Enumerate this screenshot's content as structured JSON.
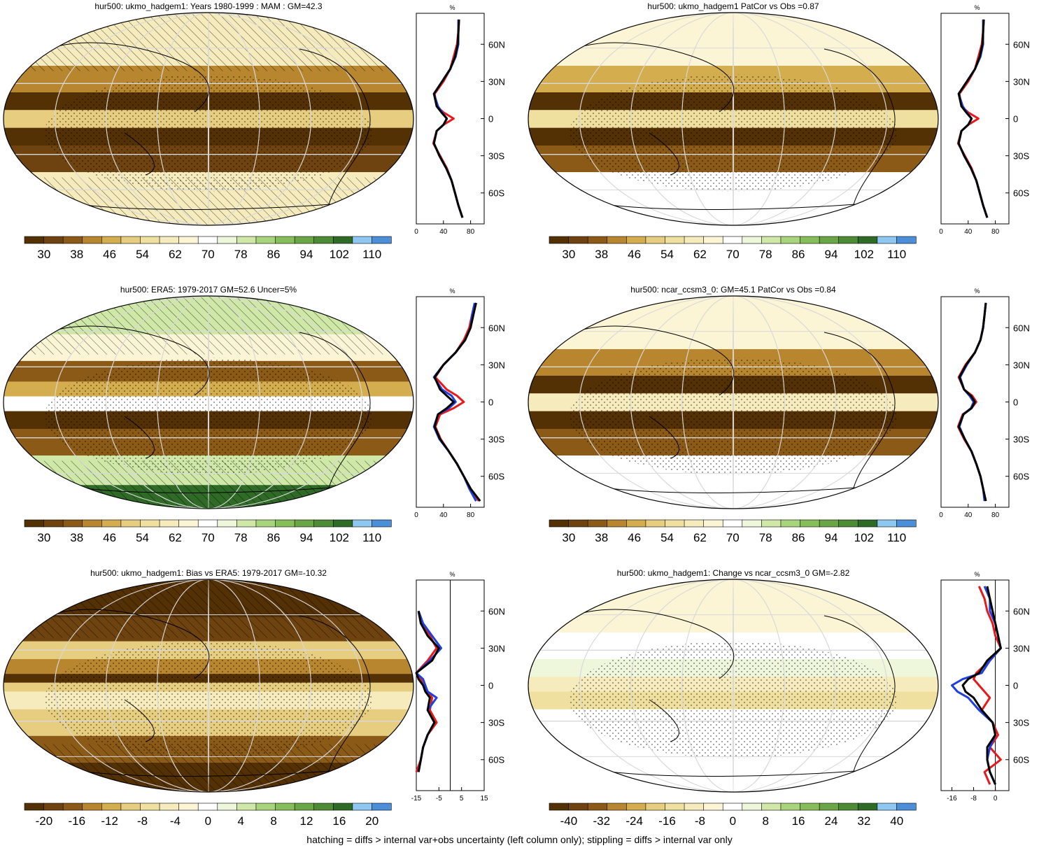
{
  "footnote": "hatching = diffs > internal var+obs uncertainty (left column only); stippling = diffs > internal var only",
  "colors": {
    "abs_palette": [
      "#543005",
      "#6e430f",
      "#8c5a17",
      "#b8862e",
      "#d4ad4e",
      "#e6cd7f",
      "#f0e0a0",
      "#f6ebbd",
      "#fbf5d6",
      "#ffffff",
      "#eef6dc",
      "#cfe8a8",
      "#a8d47c",
      "#86bf5a",
      "#6aa645",
      "#4d8b34",
      "#2f6b27",
      "#8ec7f0",
      "#4a8fd8"
    ],
    "diff_palette": [
      "#543005",
      "#6e430f",
      "#8c5a17",
      "#b8862e",
      "#d4ad4e",
      "#e6cd7f",
      "#f0e0a0",
      "#f6ebbd",
      "#fbf5d6",
      "#ffffff",
      "#eef6dc",
      "#cfe8a8",
      "#a8d47c",
      "#86bf5a",
      "#6aa645",
      "#4d8b34",
      "#2f6b27",
      "#8ec7f0",
      "#4a8fd8"
    ],
    "profile_model": "#e8191c",
    "profile_obs": "#1f3fe0",
    "profile_mmm": "#000000"
  },
  "chart_data": [
    {
      "type": "heatmap",
      "id": "p1",
      "title": "hur500: ukmo_hadgem1: Years 1980-1999 : MAM : GM=42.3",
      "colorbar_ticks": [
        "30",
        "38",
        "46",
        "54",
        "62",
        "70",
        "78",
        "86",
        "94",
        "102",
        "110"
      ],
      "map_bands": [
        {
          "lat": 60,
          "v": 62
        },
        {
          "lat": 30,
          "v": 46
        },
        {
          "lat": 15,
          "v": 30
        },
        {
          "lat": 0,
          "v": 54
        },
        {
          "lat": -15,
          "v": 30
        },
        {
          "lat": -30,
          "v": 38
        },
        {
          "lat": -60,
          "v": 62
        }
      ],
      "hatched": true,
      "stippled": true,
      "profile": {
        "unit": "%",
        "lat_ticks": [
          "60N",
          "30N",
          "0",
          "30S",
          "60S"
        ],
        "x_ticks": [
          "0",
          "40",
          "80"
        ],
        "xlim": [
          0,
          100
        ],
        "show_zero_line": false,
        "lat": [
          80,
          70,
          60,
          50,
          40,
          30,
          20,
          10,
          5,
          0,
          -5,
          -10,
          -20,
          -30,
          -40,
          -50,
          -60,
          -70,
          -80
        ],
        "model": [
          63,
          62,
          60,
          55,
          50,
          40,
          27,
          30,
          40,
          55,
          40,
          30,
          25,
          35,
          45,
          52,
          57,
          62,
          68
        ],
        "obs": [
          62,
          62,
          62,
          58,
          50,
          38,
          26,
          32,
          38,
          45,
          40,
          30,
          26,
          34,
          44,
          52,
          57,
          62,
          68
        ],
        "mmm": [
          63,
          62,
          61,
          57,
          50,
          38,
          26,
          30,
          37,
          45,
          40,
          30,
          26,
          34,
          44,
          52,
          57,
          62,
          68
        ]
      }
    },
    {
      "type": "heatmap",
      "id": "p2",
      "title": "hur500: ukmo_hadgem1 PatCor vs Obs =0.87",
      "colorbar_ticks": [
        "30",
        "38",
        "46",
        "54",
        "62",
        "70",
        "78",
        "86",
        "94",
        "102",
        "110"
      ],
      "map_bands": [
        {
          "lat": 60,
          "v": 66
        },
        {
          "lat": 30,
          "v": 50
        },
        {
          "lat": 15,
          "v": 34
        },
        {
          "lat": 0,
          "v": 58
        },
        {
          "lat": -15,
          "v": 32
        },
        {
          "lat": -30,
          "v": 42
        },
        {
          "lat": -60,
          "v": 70
        }
      ],
      "hatched": false,
      "stippled": true,
      "profile": {
        "unit": "%",
        "lat_ticks": [
          "60N",
          "30N",
          "0",
          "30S",
          "60S"
        ],
        "x_ticks": [
          "0",
          "40",
          "80"
        ],
        "xlim": [
          0,
          100
        ],
        "show_zero_line": false,
        "lat": [
          80,
          70,
          60,
          50,
          40,
          30,
          20,
          10,
          5,
          0,
          -5,
          -10,
          -20,
          -30,
          -40,
          -50,
          -60,
          -70,
          -80
        ],
        "model": [
          63,
          62,
          60,
          55,
          50,
          40,
          27,
          30,
          40,
          55,
          40,
          30,
          25,
          35,
          45,
          52,
          57,
          62,
          68
        ],
        "obs": [
          62,
          62,
          62,
          58,
          50,
          38,
          26,
          32,
          38,
          45,
          40,
          30,
          26,
          34,
          44,
          52,
          57,
          62,
          68
        ],
        "mmm": [
          63,
          62,
          61,
          57,
          50,
          38,
          26,
          30,
          37,
          45,
          40,
          30,
          26,
          34,
          44,
          52,
          57,
          62,
          68
        ]
      }
    },
    {
      "type": "heatmap",
      "id": "p3",
      "title": "hur500: ERA5: 1979-2017 GM=52.6 Uncer=5%",
      "colorbar_ticks": [
        "30",
        "38",
        "46",
        "54",
        "62",
        "70",
        "78",
        "86",
        "94",
        "102",
        "110"
      ],
      "map_bands": [
        {
          "lat": 70,
          "v": 80
        },
        {
          "lat": 45,
          "v": 66
        },
        {
          "lat": 25,
          "v": 40
        },
        {
          "lat": 10,
          "v": 50
        },
        {
          "lat": 0,
          "v": 72
        },
        {
          "lat": -15,
          "v": 34
        },
        {
          "lat": -30,
          "v": 42
        },
        {
          "lat": -60,
          "v": 78
        },
        {
          "lat": -80,
          "v": 98
        }
      ],
      "hatched": true,
      "stippled": true,
      "profile": {
        "unit": "%",
        "lat_ticks": [
          "60N",
          "30N",
          "0",
          "30S",
          "60S"
        ],
        "x_ticks": [
          "0",
          "40",
          "80"
        ],
        "xlim": [
          0,
          100
        ],
        "show_zero_line": false,
        "lat": [
          80,
          70,
          60,
          50,
          40,
          30,
          20,
          10,
          5,
          0,
          -5,
          -10,
          -20,
          -30,
          -40,
          -50,
          -60,
          -70,
          -80
        ],
        "model": [
          88,
          82,
          78,
          70,
          58,
          40,
          28,
          45,
          60,
          70,
          55,
          35,
          28,
          36,
          48,
          60,
          70,
          80,
          92
        ],
        "obs": [
          86,
          82,
          80,
          72,
          58,
          40,
          26,
          38,
          52,
          58,
          48,
          32,
          26,
          34,
          48,
          60,
          70,
          78,
          88
        ],
        "mmm": [
          88,
          84,
          80,
          72,
          58,
          40,
          27,
          35,
          45,
          55,
          45,
          32,
          27,
          35,
          48,
          60,
          70,
          80,
          94
        ]
      }
    },
    {
      "type": "heatmap",
      "id": "p4",
      "title": "hur500: ncar_ccsm3_0: GM=45.1 PatCor vs Obs =0.84",
      "colorbar_ticks": [
        "30",
        "38",
        "46",
        "54",
        "62",
        "70",
        "78",
        "86",
        "94",
        "102",
        "110"
      ],
      "map_bands": [
        {
          "lat": 60,
          "v": 66
        },
        {
          "lat": 30,
          "v": 46
        },
        {
          "lat": 15,
          "v": 30
        },
        {
          "lat": 0,
          "v": 60
        },
        {
          "lat": -15,
          "v": 30
        },
        {
          "lat": -30,
          "v": 40
        },
        {
          "lat": -60,
          "v": 70
        }
      ],
      "hatched": false,
      "stippled": true,
      "profile": {
        "unit": "%",
        "lat_ticks": [
          "60N",
          "30N",
          "0",
          "30S",
          "60S"
        ],
        "x_ticks": [
          "0",
          "40",
          "80"
        ],
        "xlim": [
          0,
          100
        ],
        "show_zero_line": false,
        "lat": [
          80,
          70,
          60,
          50,
          40,
          30,
          20,
          10,
          5,
          0,
          -5,
          -10,
          -20,
          -30,
          -40,
          -50,
          -60,
          -70,
          -80
        ],
        "model": [
          66,
          64,
          62,
          58,
          50,
          36,
          26,
          34,
          46,
          52,
          45,
          32,
          25,
          34,
          45,
          52,
          58,
          62,
          66
        ],
        "obs": [
          66,
          64,
          62,
          58,
          50,
          38,
          28,
          34,
          42,
          48,
          44,
          33,
          27,
          35,
          45,
          52,
          58,
          62,
          64
        ],
        "mmm": [
          66,
          64,
          62,
          58,
          50,
          37,
          27,
          34,
          44,
          50,
          45,
          33,
          26,
          35,
          45,
          52,
          58,
          62,
          66
        ]
      }
    },
    {
      "type": "heatmap",
      "id": "p5",
      "title": "hur500: ukmo_hadgem1: Bias vs ERA5: 1979-2017 GM=-10.32",
      "colorbar_ticks": [
        "-20",
        "-16",
        "-12",
        "-8",
        "-4",
        "0",
        "4",
        "8",
        "12",
        "16",
        "20"
      ],
      "map_bands": [
        {
          "lat": 70,
          "v": -20
        },
        {
          "lat": 45,
          "v": -16
        },
        {
          "lat": 30,
          "v": -8
        },
        {
          "lat": 15,
          "v": -12
        },
        {
          "lat": 5,
          "v": -20
        },
        {
          "lat": 0,
          "v": -8
        },
        {
          "lat": -10,
          "v": -4
        },
        {
          "lat": -30,
          "v": -8
        },
        {
          "lat": -55,
          "v": -14
        },
        {
          "lat": -75,
          "v": -20
        }
      ],
      "hatched": true,
      "stippled": true,
      "profile": {
        "unit": "%",
        "lat_ticks": [
          "60N",
          "30N",
          "0",
          "30S",
          "60S"
        ],
        "x_ticks": [
          "-15",
          "-5",
          "5",
          "15"
        ],
        "xlim": [
          -15,
          15
        ],
        "show_zero_line": true,
        "lat": [
          60,
          50,
          40,
          30,
          20,
          10,
          5,
          0,
          -5,
          -10,
          -20,
          -30,
          -40,
          -50,
          -60,
          -70
        ],
        "model": [
          -14,
          -13,
          -9,
          -6,
          -10,
          -15,
          -13,
          -12,
          -10,
          -8,
          -9,
          -6,
          -10,
          -12,
          -13,
          -15
        ],
        "obs": [
          -14,
          -12,
          -8,
          -4,
          -9,
          -15,
          -12,
          -11,
          -10,
          -6,
          -10,
          -7,
          -10,
          -12,
          -13,
          -14
        ],
        "mmm": [
          -14,
          -13,
          -10,
          -5,
          -8,
          -15,
          -14,
          -12,
          -11,
          -9,
          -10,
          -7,
          -10,
          -12,
          -13,
          -14
        ]
      }
    },
    {
      "type": "heatmap",
      "id": "p6",
      "title": "hur500: ukmo_hadgem1: Change vs ncar_ccsm3_0 GM=-2.82",
      "colorbar_ticks": [
        "-40",
        "-32",
        "-24",
        "-16",
        "-8",
        "0",
        "8",
        "16",
        "24",
        "32",
        "40"
      ],
      "map_bands": [
        {
          "lat": 60,
          "v": -4
        },
        {
          "lat": 30,
          "v": 2
        },
        {
          "lat": 15,
          "v": 6
        },
        {
          "lat": 0,
          "v": -10
        },
        {
          "lat": -10,
          "v": -14
        },
        {
          "lat": -30,
          "v": -2
        },
        {
          "lat": -60,
          "v": 0
        }
      ],
      "hatched": false,
      "stippled": true,
      "profile": {
        "unit": "%",
        "lat_ticks": [
          "60N",
          "30N",
          "0",
          "30S",
          "60S"
        ],
        "x_ticks": [
          "-16",
          "-8",
          "0"
        ],
        "xlim": [
          -20,
          5
        ],
        "show_zero_line": true,
        "lat": [
          80,
          70,
          60,
          50,
          40,
          30,
          20,
          10,
          5,
          0,
          -5,
          -10,
          -20,
          -30,
          -40,
          -50,
          -60,
          -70,
          -80
        ],
        "model": [
          -6,
          -4,
          -3,
          -1,
          0,
          2,
          -2,
          -7,
          -8,
          -6,
          -4,
          -2,
          -5,
          -1,
          1,
          -2,
          2,
          -4,
          -2
        ],
        "obs": [
          -4,
          -2,
          -2,
          0,
          1,
          2,
          -2,
          -5,
          -12,
          -16,
          -14,
          -10,
          -6,
          -1,
          0,
          -2,
          -3,
          -2,
          0
        ],
        "mmm": [
          -3,
          -2,
          -1,
          0,
          1,
          2,
          -3,
          -6,
          -10,
          -12,
          -11,
          -8,
          -5,
          -1,
          0,
          -3,
          -3,
          -2,
          0
        ]
      }
    }
  ]
}
